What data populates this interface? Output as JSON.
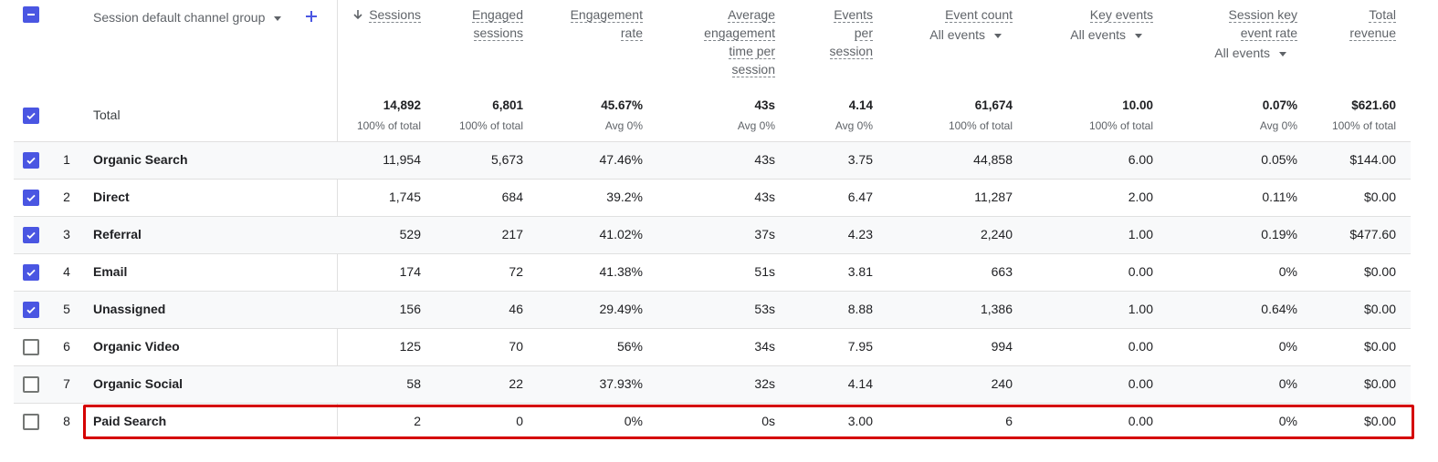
{
  "header": {
    "dimension_label": "Session default channel group",
    "add_icon": "plus-icon",
    "sort_icon": "arrow-down-icon",
    "columns": [
      {
        "lines": [
          "Sessions"
        ],
        "sorted": true
      },
      {
        "lines": [
          "Engaged",
          "sessions"
        ]
      },
      {
        "lines": [
          "Engagement",
          "rate"
        ]
      },
      {
        "lines": [
          "Average",
          "engagement",
          "time per",
          "session"
        ]
      },
      {
        "lines": [
          "Events",
          "per",
          "session"
        ]
      },
      {
        "lines": [
          "Event count"
        ],
        "filter": "All events"
      },
      {
        "lines": [
          "Key events"
        ],
        "filter": "All events"
      },
      {
        "lines": [
          "Session key",
          "event rate"
        ],
        "filter": "All events"
      },
      {
        "lines": [
          "Total",
          "revenue"
        ]
      }
    ]
  },
  "totals": {
    "label": "Total",
    "values": [
      "14,892",
      "6,801",
      "45.67%",
      "43s",
      "4.14",
      "61,674",
      "10.00",
      "0.07%",
      "$621.60"
    ],
    "subs": [
      "100% of total",
      "100% of total",
      "Avg 0%",
      "Avg 0%",
      "Avg 0%",
      "100% of total",
      "100% of total",
      "Avg 0%",
      "100% of total"
    ]
  },
  "rows": [
    {
      "num": "1",
      "name": "Organic Search",
      "checked": true,
      "values": [
        "11,954",
        "5,673",
        "47.46%",
        "43s",
        "3.75",
        "44,858",
        "6.00",
        "0.05%",
        "$144.00"
      ]
    },
    {
      "num": "2",
      "name": "Direct",
      "checked": true,
      "values": [
        "1,745",
        "684",
        "39.2%",
        "43s",
        "6.47",
        "11,287",
        "2.00",
        "0.11%",
        "$0.00"
      ]
    },
    {
      "num": "3",
      "name": "Referral",
      "checked": true,
      "values": [
        "529",
        "217",
        "41.02%",
        "37s",
        "4.23",
        "2,240",
        "1.00",
        "0.19%",
        "$477.60"
      ]
    },
    {
      "num": "4",
      "name": "Email",
      "checked": true,
      "values": [
        "174",
        "72",
        "41.38%",
        "51s",
        "3.81",
        "663",
        "0.00",
        "0%",
        "$0.00"
      ]
    },
    {
      "num": "5",
      "name": "Unassigned",
      "checked": true,
      "values": [
        "156",
        "46",
        "29.49%",
        "53s",
        "8.88",
        "1,386",
        "1.00",
        "0.64%",
        "$0.00"
      ]
    },
    {
      "num": "6",
      "name": "Organic Video",
      "checked": false,
      "values": [
        "125",
        "70",
        "56%",
        "34s",
        "7.95",
        "994",
        "0.00",
        "0%",
        "$0.00"
      ]
    },
    {
      "num": "7",
      "name": "Organic Social",
      "checked": false,
      "values": [
        "58",
        "22",
        "37.93%",
        "32s",
        "4.14",
        "240",
        "0.00",
        "0%",
        "$0.00"
      ]
    },
    {
      "num": "8",
      "name": "Paid Search",
      "checked": false,
      "highlighted": true,
      "values": [
        "2",
        "0",
        "0%",
        "0s",
        "3.00",
        "6",
        "0.00",
        "0%",
        "$0.00"
      ]
    }
  ],
  "colors": {
    "accent": "#4a56e2",
    "highlight": "#d50000",
    "alt_row": "#f8f9fa"
  }
}
